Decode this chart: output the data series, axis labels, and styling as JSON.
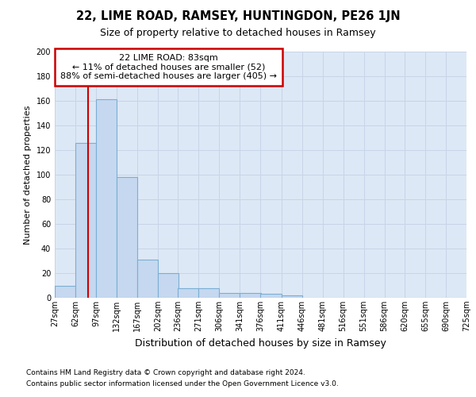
{
  "title": "22, LIME ROAD, RAMSEY, HUNTINGDON, PE26 1JN",
  "subtitle": "Size of property relative to detached houses in Ramsey",
  "xlabel": "Distribution of detached houses by size in Ramsey",
  "ylabel": "Number of detached properties",
  "bin_edges": [
    27,
    62,
    97,
    132,
    167,
    202,
    236,
    271,
    306,
    341,
    376,
    411,
    446,
    481,
    516,
    551,
    586,
    620,
    655,
    690,
    725
  ],
  "bar_heights": [
    10,
    126,
    161,
    98,
    31,
    20,
    8,
    8,
    4,
    4,
    3,
    2,
    0,
    0,
    0,
    0,
    0,
    0,
    0,
    0
  ],
  "bar_color": "#c5d8ef",
  "bar_edge_color": "#7bafd4",
  "bar_edge_width": 0.8,
  "property_size": 83,
  "red_line_color": "#cc0000",
  "annotation_box_edge_color": "#cc0000",
  "annotation_line1": "22 LIME ROAD: 83sqm",
  "annotation_line2": "← 11% of detached houses are smaller (52)",
  "annotation_line3": "88% of semi-detached houses are larger (405) →",
  "ylim": [
    0,
    200
  ],
  "yticks": [
    0,
    20,
    40,
    60,
    80,
    100,
    120,
    140,
    160,
    180,
    200
  ],
  "grid_color": "#c8d4e8",
  "bg_color": "#dce8f5",
  "footnote1": "Contains HM Land Registry data © Crown copyright and database right 2024.",
  "footnote2": "Contains public sector information licensed under the Open Government Licence v3.0.",
  "title_fontsize": 10.5,
  "subtitle_fontsize": 9,
  "xlabel_fontsize": 9,
  "ylabel_fontsize": 8,
  "tick_fontsize": 7,
  "annotation_fontsize": 8,
  "footnote_fontsize": 6.5
}
